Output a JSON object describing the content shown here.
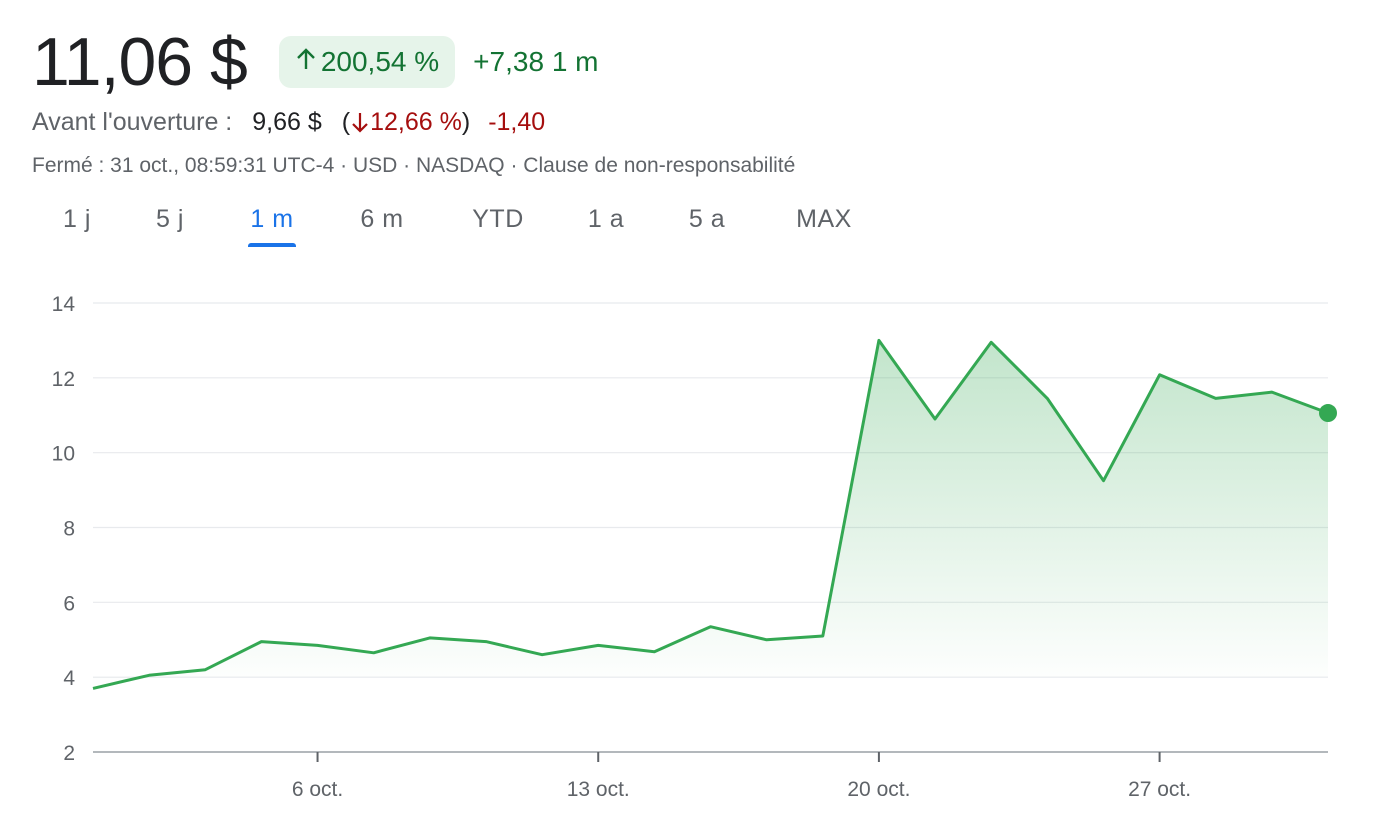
{
  "header": {
    "price": "11,06 $",
    "percent_change": "200,54 %",
    "percent_direction": "up",
    "abs_change": "+7,38",
    "period": "1 m"
  },
  "premarket": {
    "label": "Avant l'ouverture :",
    "price": "9,66 $",
    "percent_change": "12,66 %",
    "abs_change": "-1,40"
  },
  "meta": "Fermé : 31 oct., 08:59:31 UTC-4 · USD · NASDAQ · Clause de non-responsabilité",
  "tabs": [
    {
      "label": "1 j"
    },
    {
      "label": "5 j"
    },
    {
      "label": "1 m",
      "active": true
    },
    {
      "label": "6 m"
    },
    {
      "label": "YTD"
    },
    {
      "label": "1 a"
    },
    {
      "label": "5 a"
    },
    {
      "label": "MAX"
    }
  ],
  "colors": {
    "positive": "#137333",
    "negative": "#a50e0e",
    "line": "#34a853",
    "accent": "#1a73e8"
  },
  "chart_data": {
    "type": "area",
    "ylim": [
      2,
      14
    ],
    "yticks": [
      "2",
      "4",
      "6",
      "8",
      "10",
      "12",
      "14"
    ],
    "xtick_labels": [
      "6 oct.",
      "13 oct.",
      "20 oct.",
      "27 oct."
    ],
    "xtick_days": [
      6,
      13,
      20,
      27
    ],
    "xlim_days": [
      0.4,
      31.2
    ],
    "x_days": [
      0.4,
      1.8,
      3.2,
      4.6,
      6,
      7.4,
      8.8,
      10.2,
      11.6,
      13,
      14.4,
      15.8,
      17.2,
      18.6,
      20,
      21.4,
      22.8,
      24.2,
      25.6,
      27,
      28.4,
      29.8,
      31.2
    ],
    "values": [
      3.7,
      4.05,
      4.2,
      4.95,
      4.85,
      4.65,
      5.05,
      4.95,
      4.6,
      4.85,
      4.68,
      5.35,
      5.0,
      5.1,
      13.0,
      10.9,
      12.95,
      11.45,
      9.25,
      12.08,
      11.45,
      11.62,
      11.06
    ],
    "grid": true,
    "last_point_marker": true
  }
}
